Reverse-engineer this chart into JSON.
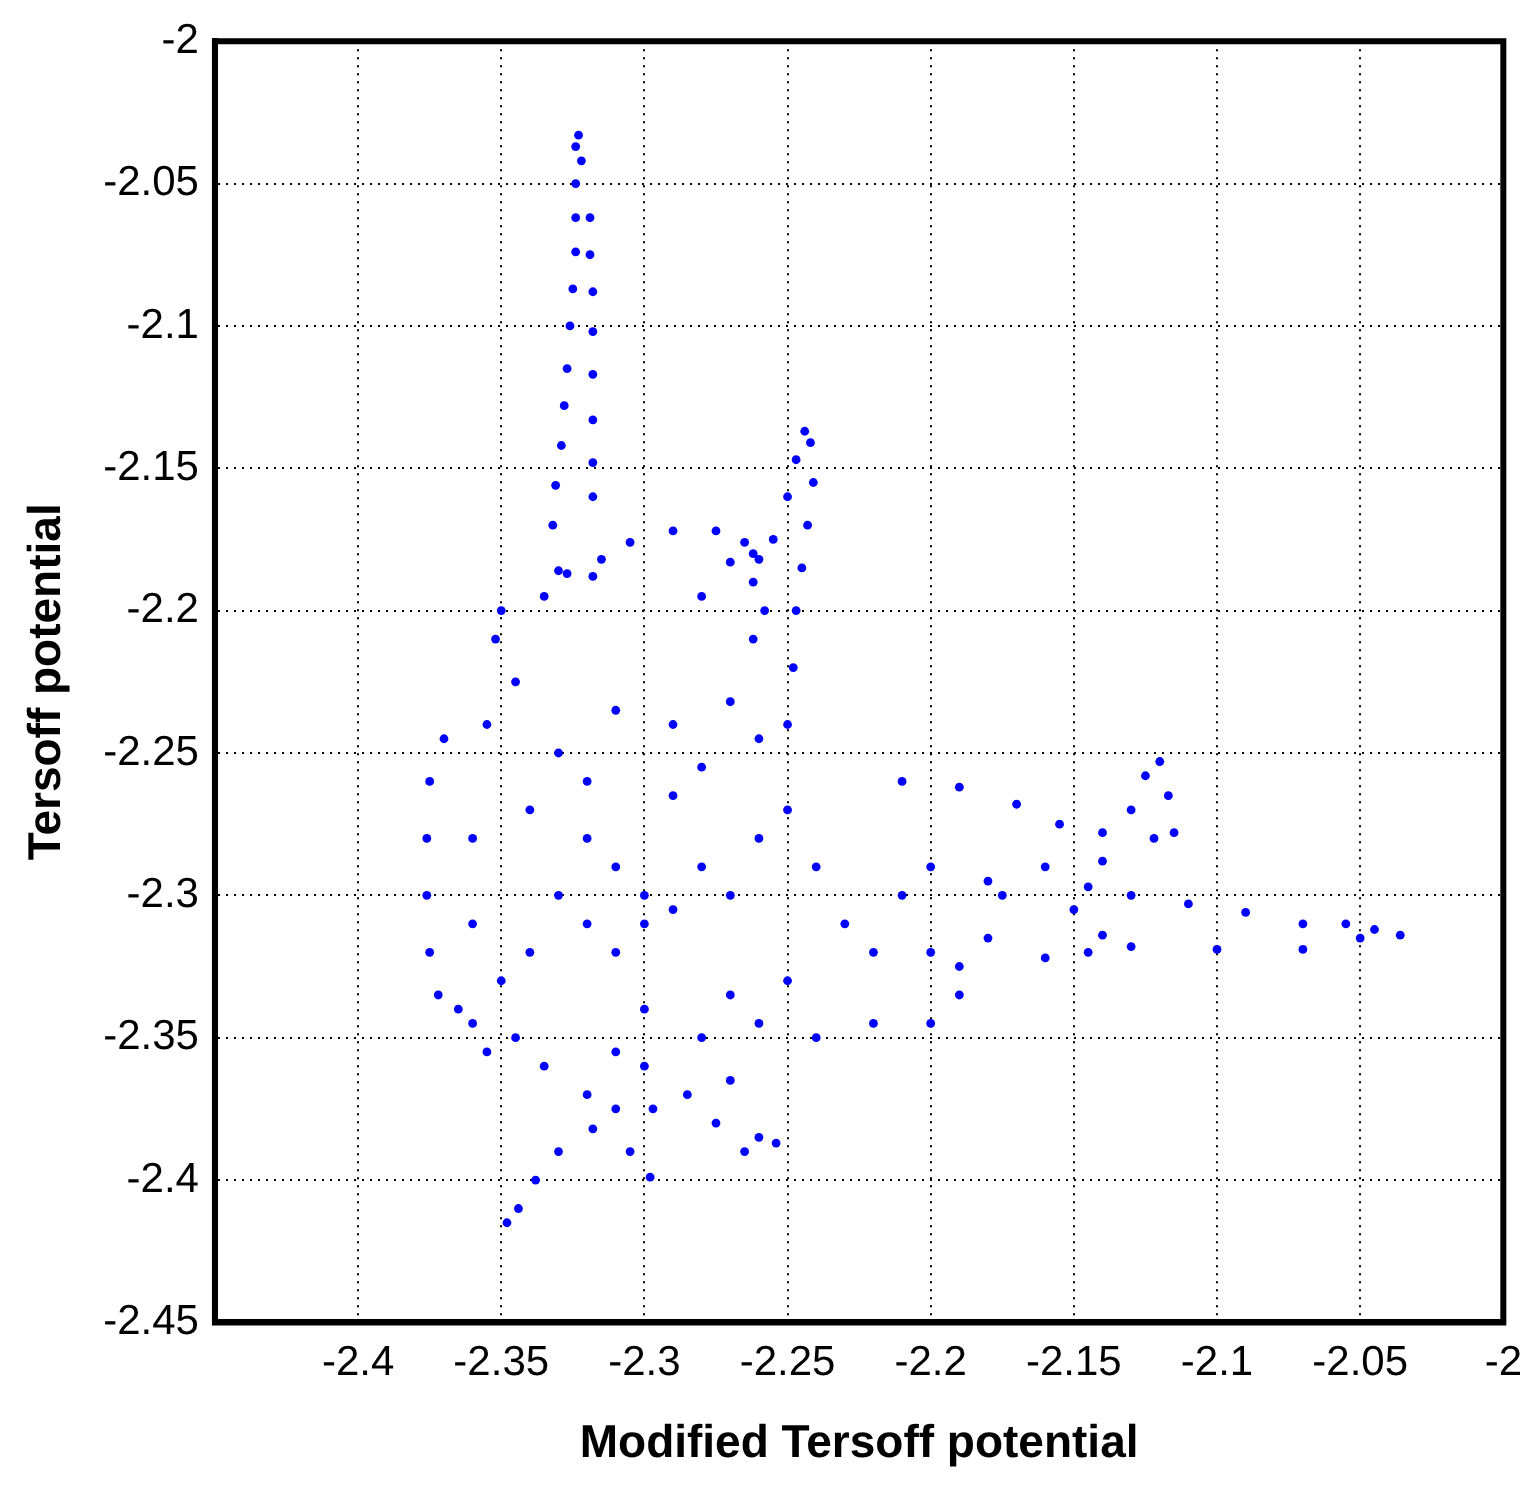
{
  "chart_data": {
    "type": "scatter",
    "xlabel": "Modified Tersoff potential",
    "ylabel": "Tersoff potential",
    "xlim": [
      -2.45,
      -2
    ],
    "ylim": [
      -2.45,
      -2
    ],
    "xticks": [
      -2.4,
      -2.35,
      -2.3,
      -2.25,
      -2.2,
      -2.15,
      -2.1,
      -2.05,
      -2
    ],
    "yticks": [
      -2.45,
      -2.4,
      -2.35,
      -2.3,
      -2.25,
      -2.2,
      -2.15,
      -2.1,
      -2.05,
      -2
    ],
    "grid": true,
    "marker": "circle",
    "legend": false,
    "series": [
      {
        "color": "#0000ff",
        "x": [
          -2.323,
          -2.324,
          -2.322,
          -2.324,
          -2.324,
          -2.319,
          -2.324,
          -2.319,
          -2.325,
          -2.318,
          -2.326,
          -2.318,
          -2.327,
          -2.318,
          -2.328,
          -2.318,
          -2.329,
          -2.318,
          -2.331,
          -2.318,
          -2.332,
          -2.33,
          -2.318,
          -2.335,
          -2.327,
          -2.315,
          -2.305,
          -2.29,
          -2.275,
          -2.265,
          -2.262,
          -2.28,
          -2.27,
          -2.26,
          -2.255,
          -2.25,
          -2.247,
          -2.244,
          -2.242,
          -2.241,
          -2.243,
          -2.245,
          -2.247,
          -2.248,
          -2.25,
          -2.262,
          -2.262,
          -2.258,
          -2.35,
          -2.352,
          -2.345,
          -2.355,
          -2.31,
          -2.29,
          -2.27,
          -2.26,
          -2.33,
          -2.28,
          -2.37,
          -2.375,
          -2.376,
          -2.376,
          -2.375,
          -2.372,
          -2.365,
          -2.36,
          -2.36,
          -2.34,
          -2.32,
          -2.31,
          -2.3,
          -2.3,
          -2.29,
          -2.31,
          -2.32,
          -2.33,
          -2.34,
          -2.35,
          -2.28,
          -2.27,
          -2.26,
          -2.25,
          -2.24,
          -2.23,
          -2.22,
          -2.21,
          -2.2,
          -2.2,
          -2.25,
          -2.27,
          -2.3,
          -2.29,
          -2.32,
          -2.36,
          -2.355,
          -2.345,
          -2.335,
          -2.32,
          -2.31,
          -2.3,
          -2.285,
          -2.275,
          -2.265,
          -2.27,
          -2.28,
          -2.26,
          -2.24,
          -2.22,
          -2.2,
          -2.19,
          -2.298,
          -2.305,
          -2.318,
          -2.33,
          -2.338,
          -2.344,
          -2.348,
          -2.31,
          -2.297,
          -2.254,
          -2.26,
          -2.21,
          -2.19,
          -2.17,
          -2.155,
          -2.14,
          -2.13,
          -2.125,
          -2.12,
          -2.117,
          -2.115,
          -2.122,
          -2.14,
          -2.145,
          -2.16,
          -2.18,
          -2.15,
          -2.145,
          -2.16,
          -2.18,
          -2.19,
          -2.175,
          -2.13,
          -2.11,
          -2.09,
          -2.07,
          -2.055,
          -2.045,
          -2.036,
          -2.05,
          -2.07,
          -2.1,
          -2.13,
          -2.14
        ],
        "values": [
          -2.033,
          -2.037,
          -2.042,
          -2.05,
          -2.062,
          -2.062,
          -2.074,
          -2.075,
          -2.087,
          -2.088,
          -2.1,
          -2.102,
          -2.115,
          -2.117,
          -2.128,
          -2.133,
          -2.142,
          -2.148,
          -2.156,
          -2.16,
          -2.17,
          -2.186,
          -2.188,
          -2.195,
          -2.187,
          -2.182,
          -2.176,
          -2.172,
          -2.172,
          -2.176,
          -2.18,
          -2.195,
          -2.183,
          -2.182,
          -2.175,
          -2.16,
          -2.147,
          -2.137,
          -2.141,
          -2.155,
          -2.17,
          -2.185,
          -2.2,
          -2.22,
          -2.24,
          -2.19,
          -2.21,
          -2.2,
          -2.2,
          -2.21,
          -2.225,
          -2.24,
          -2.235,
          -2.24,
          -2.232,
          -2.245,
          -2.25,
          -2.255,
          -2.245,
          -2.26,
          -2.28,
          -2.3,
          -2.32,
          -2.335,
          -2.34,
          -2.31,
          -2.28,
          -2.27,
          -2.28,
          -2.29,
          -2.3,
          -2.31,
          -2.305,
          -2.32,
          -2.31,
          -2.3,
          -2.32,
          -2.33,
          -2.29,
          -2.3,
          -2.28,
          -2.27,
          -2.29,
          -2.31,
          -2.32,
          -2.3,
          -2.29,
          -2.32,
          -2.33,
          -2.335,
          -2.34,
          -2.265,
          -2.26,
          -2.345,
          -2.355,
          -2.35,
          -2.36,
          -2.37,
          -2.355,
          -2.36,
          -2.37,
          -2.38,
          -2.39,
          -2.365,
          -2.35,
          -2.345,
          -2.35,
          -2.345,
          -2.345,
          -2.335,
          -2.399,
          -2.39,
          -2.382,
          -2.39,
          -2.4,
          -2.41,
          -2.415,
          -2.375,
          -2.375,
          -2.387,
          -2.385,
          -2.26,
          -2.262,
          -2.268,
          -2.275,
          -2.278,
          -2.27,
          -2.258,
          -2.253,
          -2.265,
          -2.278,
          -2.28,
          -2.288,
          -2.297,
          -2.29,
          -2.295,
          -2.305,
          -2.32,
          -2.322,
          -2.315,
          -2.325,
          -2.3,
          -2.3,
          -2.303,
          -2.306,
          -2.31,
          -2.31,
          -2.312,
          -2.314,
          -2.315,
          -2.319,
          -2.319,
          -2.318,
          -2.314
        ]
      }
    ]
  }
}
